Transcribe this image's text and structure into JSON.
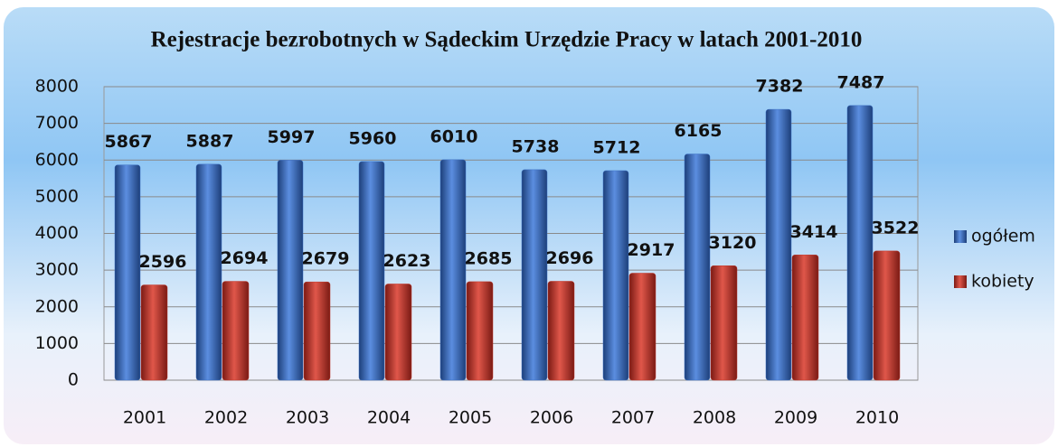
{
  "chart_data": {
    "type": "bar",
    "title": "Rejestracje bezrobotnych w Sądeckim Urzędzie Pracy w latach 2001-2010",
    "categories": [
      "2001",
      "2002",
      "2003",
      "2004",
      "2005",
      "2006",
      "2007",
      "2008",
      "2009",
      "2010"
    ],
    "series": [
      {
        "name": "ogółem",
        "color": "#3b6fc4",
        "values": [
          5867,
          5887,
          5997,
          5960,
          6010,
          5738,
          5712,
          6165,
          7382,
          7487
        ]
      },
      {
        "name": "kobiety",
        "color": "#c0392b",
        "values": [
          2596,
          2694,
          2679,
          2623,
          2685,
          2696,
          2917,
          3120,
          3414,
          3522
        ]
      }
    ],
    "ylim": [
      0,
      8000
    ],
    "yticks": [
      0,
      1000,
      2000,
      3000,
      4000,
      5000,
      6000,
      7000,
      8000
    ],
    "grid": true,
    "legend": "right"
  }
}
